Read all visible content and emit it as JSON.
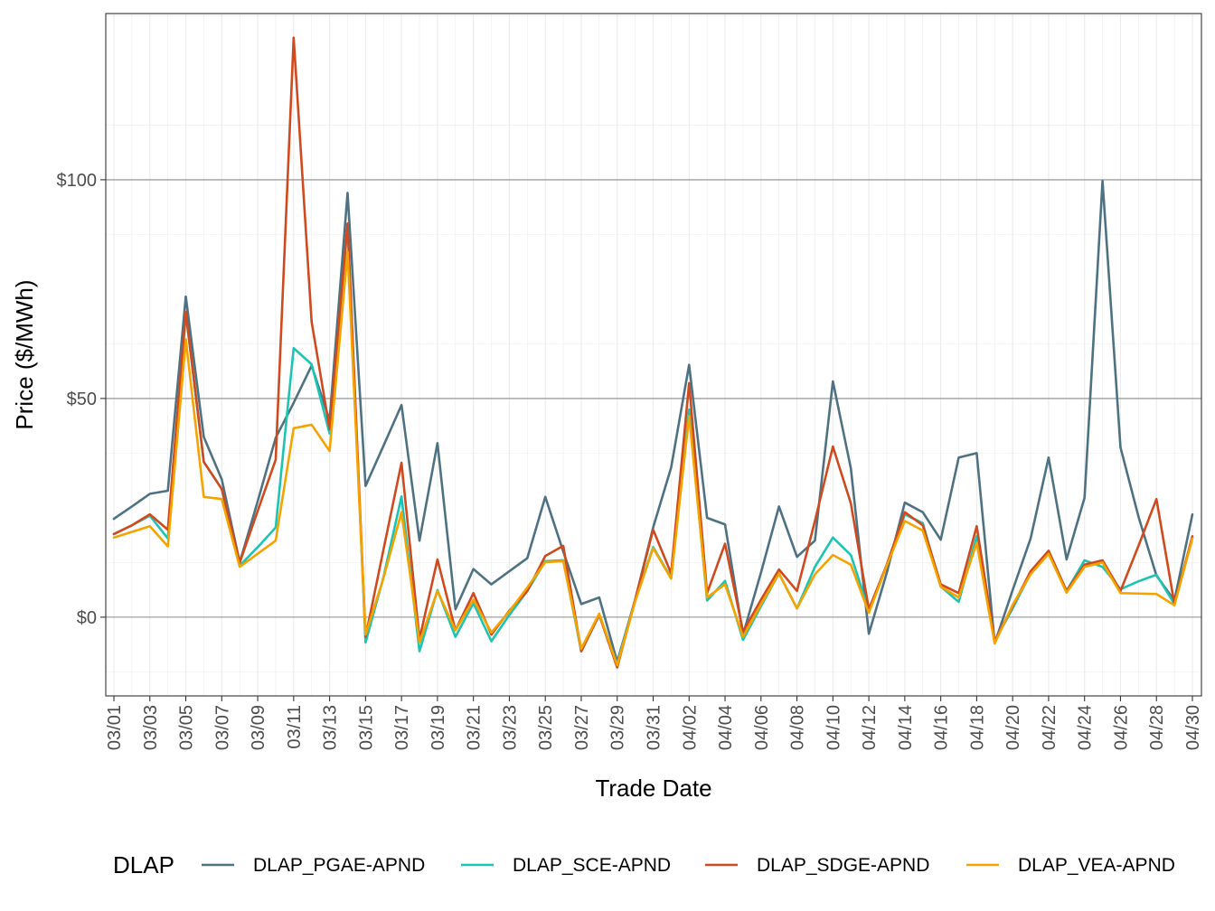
{
  "chart_data": {
    "type": "line",
    "title": "",
    "xlabel": "Trade Date",
    "ylabel": "Price ($/MWh)",
    "ylim": [
      -18,
      138
    ],
    "y_ticks": [
      {
        "value": 0,
        "label": "$0"
      },
      {
        "value": 50,
        "label": "$50"
      },
      {
        "value": 100,
        "label": "$100"
      }
    ],
    "x_tick_labels": [
      "03/01",
      "03/03",
      "03/05",
      "03/07",
      "03/09",
      "03/11",
      "03/13",
      "03/15",
      "03/17",
      "03/19",
      "03/21",
      "03/23",
      "03/25",
      "03/27",
      "03/29",
      "03/31",
      "04/02",
      "04/04",
      "04/06",
      "04/08",
      "04/10",
      "04/12",
      "04/14",
      "04/16",
      "04/18",
      "04/20",
      "04/22",
      "04/24",
      "04/26",
      "04/28",
      "04/30"
    ],
    "x": [
      "03/01",
      "03/02",
      "03/03",
      "03/04",
      "03/05",
      "03/06",
      "03/07",
      "03/08",
      "03/09",
      "03/10",
      "03/11",
      "03/12",
      "03/13",
      "03/14",
      "03/15",
      "03/16",
      "03/17",
      "03/18",
      "03/19",
      "03/20",
      "03/21",
      "03/22",
      "03/23",
      "03/24",
      "03/25",
      "03/26",
      "03/27",
      "03/28",
      "03/29",
      "03/30",
      "03/31",
      "04/01",
      "04/02",
      "04/03",
      "04/04",
      "04/05",
      "04/06",
      "04/07",
      "04/08",
      "04/09",
      "04/10",
      "04/11",
      "04/12",
      "04/13",
      "04/14",
      "04/15",
      "04/16",
      "04/17",
      "04/18",
      "04/19",
      "04/20",
      "04/21",
      "04/22",
      "04/23",
      "04/24",
      "04/25",
      "04/26",
      "04/27",
      "04/28",
      "04/29",
      "04/30"
    ],
    "grid": true,
    "legend_position": "bottom",
    "legend_title": "DLAP",
    "series": [
      {
        "name": "DLAP_PGAE-APND",
        "color": "#4e7282",
        "values": [
          22.5,
          25.3,
          28.2,
          28.9,
          73.3,
          41.2,
          31.5,
          12.5,
          26.5,
          41.0,
          49.0,
          57.5,
          45.0,
          97.0,
          30.0,
          39.2,
          48.5,
          17.5,
          39.8,
          1.8,
          11.0,
          7.5,
          10.5,
          13.5,
          27.5,
          15.0,
          3.0,
          4.5,
          -10.2,
          4.0,
          20.5,
          34.2,
          57.7,
          22.7,
          21.2,
          -4.0,
          10.2,
          25.3,
          13.8,
          17.5,
          53.9,
          34.0,
          -3.8,
          10.2,
          26.2,
          24.0,
          17.7,
          36.5,
          37.5,
          -6.0,
          6.2,
          18.0,
          36.5,
          13.2,
          27.3,
          99.7,
          38.8,
          23.0,
          9.5,
          3.8,
          23.5
        ]
      },
      {
        "name": "DLAP_SCE-APND",
        "color": "#1dc4b3",
        "values": [
          19.0,
          21.0,
          23.2,
          18.0,
          69.5,
          35.5,
          29.3,
          11.8,
          16.0,
          20.5,
          61.5,
          57.8,
          42.0,
          89.5,
          -5.8,
          9.2,
          27.6,
          -7.8,
          6.2,
          -4.5,
          3.2,
          -5.5,
          0.5,
          6.0,
          12.8,
          13.0,
          -7.8,
          0.6,
          -10.8,
          4.0,
          16.0,
          9.0,
          47.5,
          3.8,
          8.3,
          -5.2,
          2.5,
          10.0,
          2.0,
          11.5,
          18.2,
          14.2,
          1.5,
          12.0,
          23.5,
          21.5,
          7.0,
          3.5,
          18.5,
          -5.5,
          2.0,
          10.0,
          15.0,
          6.0,
          13.0,
          11.5,
          6.4,
          8.2,
          9.7,
          3.0,
          18.2
        ]
      },
      {
        "name": "DLAP_SDGE-APND",
        "color": "#cf4a1e",
        "values": [
          19.0,
          21.0,
          23.5,
          20.0,
          69.8,
          35.5,
          29.3,
          12.5,
          24.3,
          36.0,
          132.5,
          67.5,
          43.0,
          90.0,
          -4.5,
          15.5,
          35.3,
          -5.0,
          13.2,
          -3.0,
          5.5,
          -4.0,
          1.5,
          6.0,
          14.0,
          16.3,
          -7.8,
          0.5,
          -11.5,
          4.0,
          20.0,
          10.0,
          53.5,
          5.5,
          16.8,
          -3.3,
          4.0,
          10.9,
          6.0,
          22.0,
          39.0,
          26.0,
          1.8,
          12.0,
          24.0,
          21.0,
          7.5,
          5.5,
          20.8,
          -5.5,
          2.5,
          10.5,
          15.2,
          6.0,
          12.0,
          13.0,
          6.0,
          16.3,
          27.0,
          3.0,
          18.5
        ]
      },
      {
        "name": "DLAP_VEA-APND",
        "color": "#f5a300",
        "values": [
          18.2,
          19.5,
          20.8,
          16.2,
          63.5,
          27.5,
          27.0,
          11.5,
          14.5,
          17.5,
          43.2,
          44.0,
          38.0,
          83.5,
          -4.0,
          9.0,
          24.0,
          -5.8,
          6.0,
          -3.0,
          4.0,
          -3.5,
          1.3,
          6.8,
          12.6,
          12.8,
          -7.2,
          0.8,
          -11.0,
          3.6,
          15.8,
          8.8,
          46.0,
          4.5,
          7.5,
          -4.5,
          3.0,
          10.0,
          2.0,
          9.8,
          14.2,
          12.0,
          1.0,
          11.8,
          22.0,
          19.8,
          7.0,
          4.5,
          17.0,
          -6.0,
          2.8,
          9.8,
          14.5,
          5.6,
          11.5,
          12.5,
          5.5,
          5.4,
          5.3,
          2.7,
          18.0
        ]
      }
    ]
  }
}
